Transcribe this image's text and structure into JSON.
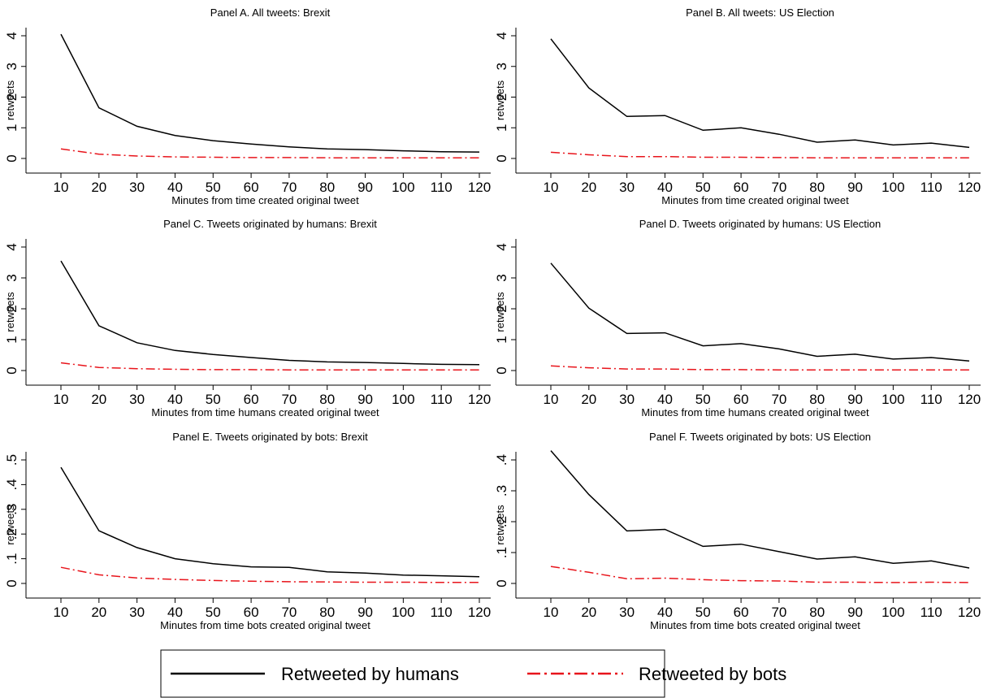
{
  "legend": {
    "humans_label": "Retweeted by humans",
    "bots_label": "Retweeted by bots"
  },
  "colors": {
    "humans": "#000000",
    "bots": "#e8141b"
  },
  "chart_data": [
    {
      "type": "line",
      "title": "Panel A. All tweets: Brexit",
      "xlabel": "Minutes from time created original tweet",
      "ylabel": "retweets",
      "x": [
        10,
        20,
        30,
        40,
        50,
        60,
        70,
        80,
        90,
        100,
        110,
        120
      ],
      "ylim": [
        0,
        4
      ],
      "yticks": [
        0,
        1,
        2,
        3,
        4
      ],
      "ytick_labels": [
        "0",
        "1",
        "2",
        "3",
        "4"
      ],
      "series": [
        {
          "name": "Retweeted by humans",
          "values": [
            4.05,
            1.65,
            1.05,
            0.75,
            0.58,
            0.47,
            0.38,
            0.31,
            0.29,
            0.25,
            0.22,
            0.21
          ]
        },
        {
          "name": "Retweeted by bots",
          "values": [
            0.31,
            0.14,
            0.08,
            0.05,
            0.04,
            0.03,
            0.03,
            0.02,
            0.02,
            0.02,
            0.02,
            0.02
          ]
        }
      ]
    },
    {
      "type": "line",
      "title": "Panel B. All tweets: US Election",
      "xlabel": "Minutes from time created original tweet",
      "ylabel": "retweets",
      "x": [
        10,
        20,
        30,
        40,
        50,
        60,
        70,
        80,
        90,
        100,
        110,
        120
      ],
      "ylim": [
        0,
        4
      ],
      "yticks": [
        0,
        1,
        2,
        3,
        4
      ],
      "ytick_labels": [
        "0",
        "1",
        "2",
        "3",
        "4"
      ],
      "series": [
        {
          "name": "Retweeted by humans",
          "values": [
            3.9,
            2.3,
            1.37,
            1.4,
            0.92,
            1.0,
            0.79,
            0.53,
            0.6,
            0.44,
            0.5,
            0.36
          ]
        },
        {
          "name": "Retweeted by bots",
          "values": [
            0.2,
            0.12,
            0.06,
            0.06,
            0.04,
            0.04,
            0.03,
            0.02,
            0.02,
            0.02,
            0.02,
            0.02
          ]
        }
      ]
    },
    {
      "type": "line",
      "title": "Panel C. Tweets originated by humans: Brexit",
      "xlabel": "Minutes from time humans created original tweet",
      "ylabel": "retweets",
      "x": [
        10,
        20,
        30,
        40,
        50,
        60,
        70,
        80,
        90,
        100,
        110,
        120
      ],
      "ylim": [
        0,
        4
      ],
      "yticks": [
        0,
        1,
        2,
        3,
        4
      ],
      "ytick_labels": [
        "0",
        "1",
        "2",
        "3",
        "4"
      ],
      "series": [
        {
          "name": "Retweeted by humans",
          "values": [
            3.55,
            1.45,
            0.9,
            0.65,
            0.52,
            0.42,
            0.33,
            0.28,
            0.26,
            0.23,
            0.2,
            0.19
          ]
        },
        {
          "name": "Retweeted by bots",
          "values": [
            0.25,
            0.1,
            0.06,
            0.04,
            0.03,
            0.03,
            0.02,
            0.02,
            0.02,
            0.02,
            0.02,
            0.02
          ]
        }
      ]
    },
    {
      "type": "line",
      "title": "Panel D. Tweets originated by humans: US Election",
      "xlabel": "Minutes from time humans created original tweet",
      "ylabel": "retweets",
      "x": [
        10,
        20,
        30,
        40,
        50,
        60,
        70,
        80,
        90,
        100,
        110,
        120
      ],
      "ylim": [
        0,
        4
      ],
      "yticks": [
        0,
        1,
        2,
        3,
        4
      ],
      "ytick_labels": [
        "0",
        "1",
        "2",
        "3",
        "4"
      ],
      "series": [
        {
          "name": "Retweeted by humans",
          "values": [
            3.48,
            2.02,
            1.2,
            1.22,
            0.8,
            0.87,
            0.7,
            0.46,
            0.53,
            0.37,
            0.42,
            0.31
          ]
        },
        {
          "name": "Retweeted by bots",
          "values": [
            0.15,
            0.09,
            0.05,
            0.05,
            0.03,
            0.03,
            0.02,
            0.02,
            0.02,
            0.02,
            0.02,
            0.02
          ]
        }
      ]
    },
    {
      "type": "line",
      "title": "Panel E. Tweets originated by bots: Brexit",
      "xlabel": "Minutes from time bots created original tweet",
      "ylabel": "retweets",
      "x": [
        10,
        20,
        30,
        40,
        50,
        60,
        70,
        80,
        90,
        100,
        110,
        120
      ],
      "ylim": [
        0,
        0.5
      ],
      "yticks": [
        0,
        0.1,
        0.2,
        0.3,
        0.4,
        0.5
      ],
      "ytick_labels": [
        "0",
        ".1",
        ".2",
        ".3",
        ".4",
        ".5"
      ],
      "series": [
        {
          "name": "Retweeted by humans",
          "values": [
            0.47,
            0.213,
            0.145,
            0.1,
            0.08,
            0.067,
            0.065,
            0.047,
            0.042,
            0.034,
            0.031,
            0.027
          ]
        },
        {
          "name": "Retweeted by bots",
          "values": [
            0.065,
            0.035,
            0.022,
            0.016,
            0.012,
            0.009,
            0.007,
            0.006,
            0.005,
            0.005,
            0.004,
            0.004
          ]
        }
      ]
    },
    {
      "type": "line",
      "title": "Panel F. Tweets originated by bots: US Election",
      "xlabel": "Minutes from time bots created original tweet",
      "ylabel": "retweets",
      "x": [
        10,
        20,
        30,
        40,
        50,
        60,
        70,
        80,
        90,
        100,
        110,
        120
      ],
      "ylim": [
        0,
        0.45
      ],
      "yticks": [
        0,
        0.1,
        0.2,
        0.3,
        0.4
      ],
      "ytick_labels": [
        "0",
        ".1",
        ".2",
        ".3",
        ".4"
      ],
      "series": [
        {
          "name": "Retweeted by humans",
          "values": [
            0.43,
            0.288,
            0.17,
            0.175,
            0.12,
            0.127,
            0.103,
            0.079,
            0.086,
            0.065,
            0.073,
            0.05
          ]
        },
        {
          "name": "Retweeted by bots",
          "values": [
            0.055,
            0.036,
            0.015,
            0.017,
            0.012,
            0.009,
            0.008,
            0.004,
            0.004,
            0.003,
            0.004,
            0.003
          ]
        }
      ]
    }
  ]
}
